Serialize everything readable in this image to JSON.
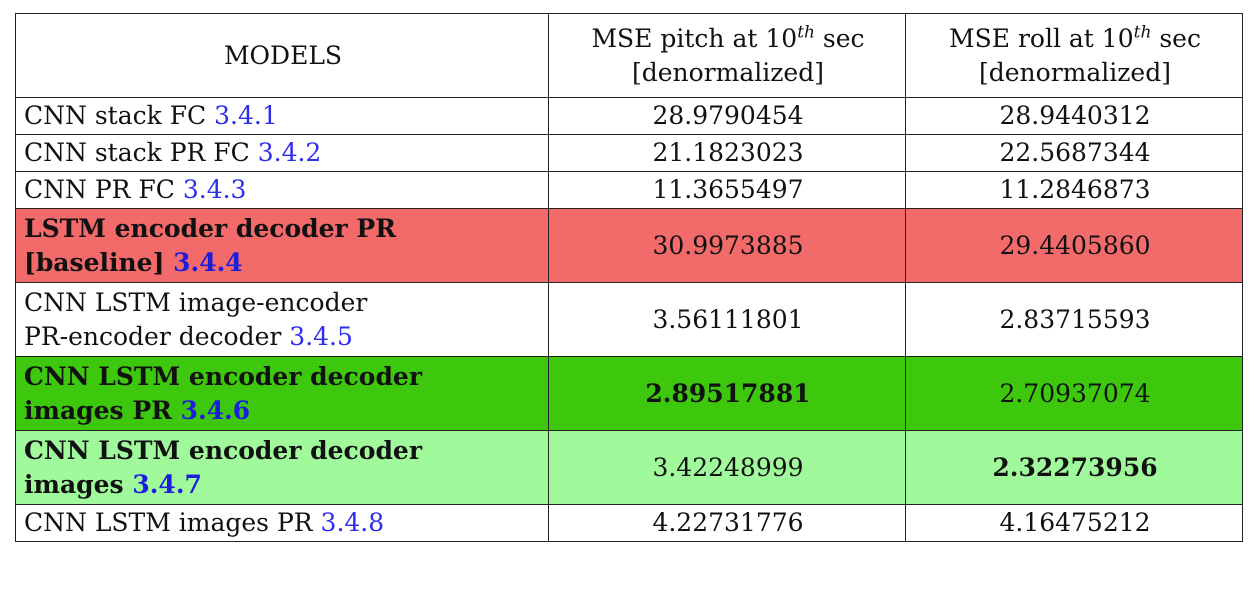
{
  "table": {
    "header": {
      "col1": "MODELS",
      "col2_line1_prefix": "MSE pitch at 10",
      "col2_sup": "th",
      "col2_line1_suffix": " sec",
      "col2_line2": "[denormalized]",
      "col3_line1_prefix": "MSE roll at 10",
      "col3_sup": "th",
      "col3_line1_suffix": " sec",
      "col3_line2": "[denormalized]"
    },
    "rows": [
      {
        "model_line1": "CNN stack FC ",
        "ref": "3.4.1",
        "pitch": "28.9790454",
        "roll": "28.9440312"
      },
      {
        "model_line1": "CNN stack PR FC ",
        "ref": "3.4.2",
        "pitch": "21.1823023",
        "roll": "22.5687344"
      },
      {
        "model_line1": "CNN PR FC ",
        "ref": "3.4.3",
        "pitch": "11.3655497",
        "roll": "11.2846873"
      },
      {
        "model_line1": "LSTM encoder decoder PR",
        "model_line2": "[baseline] ",
        "ref": "3.4.4",
        "pitch": "30.9973885",
        "roll": "29.4405860",
        "background": "#f26a6a"
      },
      {
        "model_line1": "CNN LSTM image-encoder",
        "model_line2": "PR-encoder decoder ",
        "ref": "3.4.5",
        "pitch": "3.56111801",
        "roll": "2.83715593"
      },
      {
        "model_line1": "CNN LSTM encoder decoder",
        "model_line2": "images PR ",
        "ref": "3.4.6",
        "pitch": "2.89517881",
        "roll": "2.70937074",
        "background": "#3dc80e"
      },
      {
        "model_line1": "CNN LSTM encoder decoder",
        "model_line2": "images ",
        "ref": "3.4.7",
        "pitch": "3.42248999",
        "roll": "2.32273956",
        "background": "#a0fa9c"
      },
      {
        "model_line1": "CNN LSTM images PR ",
        "ref": "3.4.8",
        "pitch": "4.22731776",
        "roll": "4.16475212"
      }
    ]
  },
  "colors": {
    "reference_link": "#2d2df0",
    "baseline_row": "#f26a6a",
    "best_pitch_row": "#3dc80e",
    "best_roll_row": "#a0fa9c"
  }
}
